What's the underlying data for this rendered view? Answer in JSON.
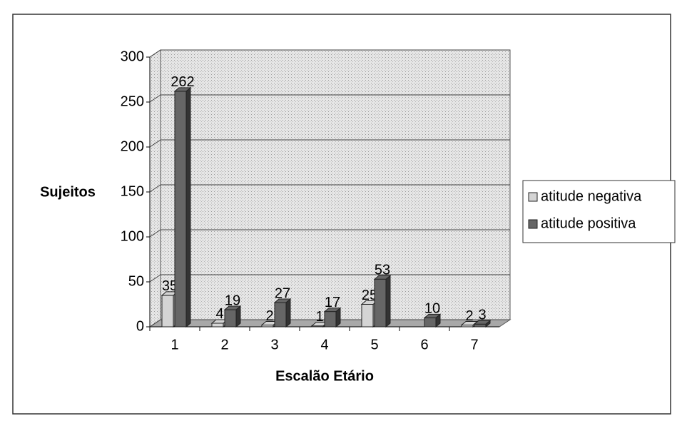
{
  "chart_data": {
    "type": "bar",
    "categories": [
      "1",
      "2",
      "3",
      "4",
      "5",
      "6",
      "7"
    ],
    "series": [
      {
        "name": "atitude negativa",
        "color": "#d4d4d4",
        "values": [
          35,
          4,
          2,
          1,
          25,
          null,
          2
        ]
      },
      {
        "name": "atitude positiva",
        "color": "#666666",
        "values": [
          262,
          19,
          27,
          17,
          53,
          10,
          3
        ]
      }
    ],
    "ylim": [
      0,
      300
    ],
    "yticks": [
      0,
      50,
      100,
      150,
      200,
      250,
      300
    ],
    "ylabel": "Sujeitos",
    "xlabel": "Escalão Etário",
    "grid": true,
    "legend": "right"
  }
}
